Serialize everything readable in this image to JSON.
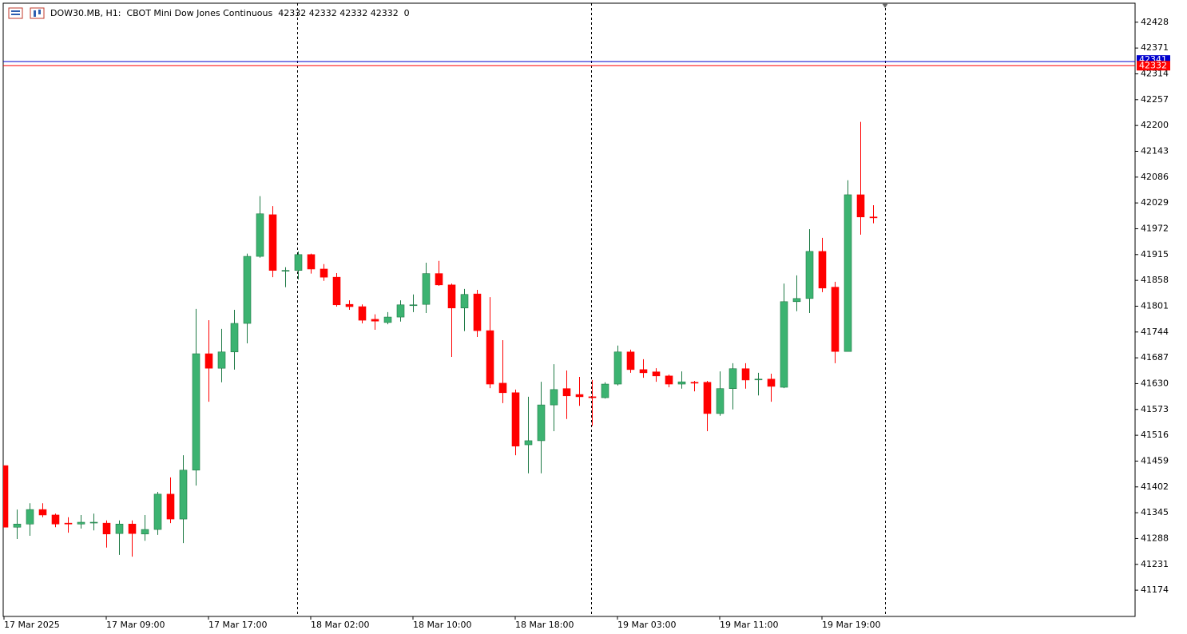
{
  "chart_data": {
    "type": "candlestick",
    "title": "DOW30.MB, H1:  CBOT Mini Dow Jones Continuous  42332 42332 42332 42332  0",
    "categories": [
      "17 Mar 2025",
      null,
      null,
      null,
      null,
      null,
      null,
      null,
      "17 Mar 09:00",
      null,
      null,
      null,
      null,
      null,
      null,
      null,
      "17 Mar 17:00",
      null,
      null,
      null,
      null,
      null,
      null,
      null,
      "18 Mar 02:00",
      null,
      null,
      null,
      null,
      null,
      null,
      null,
      "18 Mar 10:00",
      null,
      null,
      null,
      null,
      null,
      null,
      null,
      "18 Mar 18:00",
      null,
      null,
      null,
      null,
      null,
      null,
      null,
      "19 Mar 03:00",
      null,
      null,
      null,
      null,
      null,
      null,
      null,
      "19 Mar 11:00",
      null,
      null,
      null,
      null,
      null,
      null,
      null,
      "19 Mar 19:00",
      null,
      null,
      null,
      null
    ],
    "open": [
      41449,
      41313,
      41320,
      41352,
      41340,
      41322,
      41320,
      41324,
      41322,
      41299,
      41320,
      41298,
      41308,
      41386,
      41331,
      41439,
      41696,
      41664,
      41700,
      41763,
      41911,
      42003,
      41880,
      41880,
      41915,
      41883,
      41865,
      41805,
      41800,
      41772,
      41765,
      41777,
      41804,
      41805,
      41873,
      41848,
      41797,
      41828,
      41747,
      41631,
      41610,
      41495,
      41504,
      41583,
      41619,
      41606,
      41601,
      41599,
      41629,
      41700,
      41661,
      41656,
      41647,
      41629,
      41633,
      41633,
      41564,
      41619,
      41663,
      41640,
      41640,
      41622,
      41811,
      41818,
      41922,
      41843,
      41701,
      42047,
      41998
    ],
    "high": [
      41449,
      41352,
      41366,
      41366,
      41343,
      41335,
      41340,
      41343,
      41328,
      41328,
      41328,
      41340,
      41391,
      41423,
      41472,
      41795,
      41770,
      41751,
      41793,
      41917,
      42044,
      42022,
      41887,
      41922,
      41917,
      41894,
      41874,
      41814,
      41805,
      41783,
      41788,
      41814,
      41827,
      41897,
      41901,
      41851,
      41839,
      41837,
      41821,
      41726,
      41617,
      41601,
      41634,
      41673,
      41659,
      41645,
      41638,
      41633,
      41714,
      41705,
      41684,
      41664,
      41650,
      41657,
      41636,
      41636,
      41657,
      41675,
      41675,
      41654,
      41652,
      41851,
      41869,
      41971,
      41952,
      41855,
      42079,
      42208,
      42024
    ],
    "low": [
      41313,
      41287,
      41294,
      41335,
      41313,
      41301,
      41310,
      41306,
      41268,
      41252,
      41248,
      41283,
      41296,
      41322,
      41278,
      41405,
      41590,
      41633,
      41661,
      41719,
      41908,
      41865,
      41843,
      41860,
      41873,
      41857,
      41800,
      41793,
      41763,
      41749,
      41761,
      41767,
      41788,
      41786,
      41846,
      41689,
      41746,
      41733,
      41620,
      41587,
      41472,
      41432,
      41432,
      41525,
      41552,
      41581,
      41537,
      41597,
      41626,
      41654,
      41643,
      41634,
      41622,
      41619,
      41613,
      41525,
      41559,
      41573,
      41619,
      41604,
      41590,
      41620,
      41790,
      41786,
      41832,
      41675,
      41701,
      41959,
      41984
    ],
    "close": [
      41313,
      41320,
      41352,
      41340,
      41320,
      41320,
      41324,
      41324,
      41298,
      41320,
      41299,
      41308,
      41386,
      41331,
      41439,
      41696,
      41664,
      41700,
      41763,
      41911,
      42005,
      41880,
      41880,
      41915,
      41883,
      41865,
      41804,
      41800,
      41770,
      41768,
      41777,
      41804,
      41804,
      41873,
      41848,
      41797,
      41827,
      41747,
      41629,
      41610,
      41492,
      41504,
      41583,
      41617,
      41603,
      41601,
      41599,
      41629,
      41700,
      41661,
      41654,
      41647,
      41629,
      41634,
      41631,
      41564,
      41619,
      41663,
      41638,
      41640,
      41624,
      41811,
      41818,
      41922,
      41841,
      41701,
      42047,
      41998,
      41996
    ],
    "up_color": "#3cb371",
    "down_color": "#ff0000",
    "bid": 42332,
    "bid_color": "#ff0000",
    "ask": 42341,
    "ask_color": "#0000cd",
    "ylim": [
      41116,
      42470
    ],
    "yticks": [
      42428,
      42371,
      42314,
      42257,
      42200,
      42143,
      42086,
      42029,
      41972,
      41915,
      41858,
      41801,
      41744,
      41687,
      41630,
      41573,
      41516,
      41459,
      41402,
      41345,
      41288,
      41231,
      41174
    ],
    "grid": false
  }
}
